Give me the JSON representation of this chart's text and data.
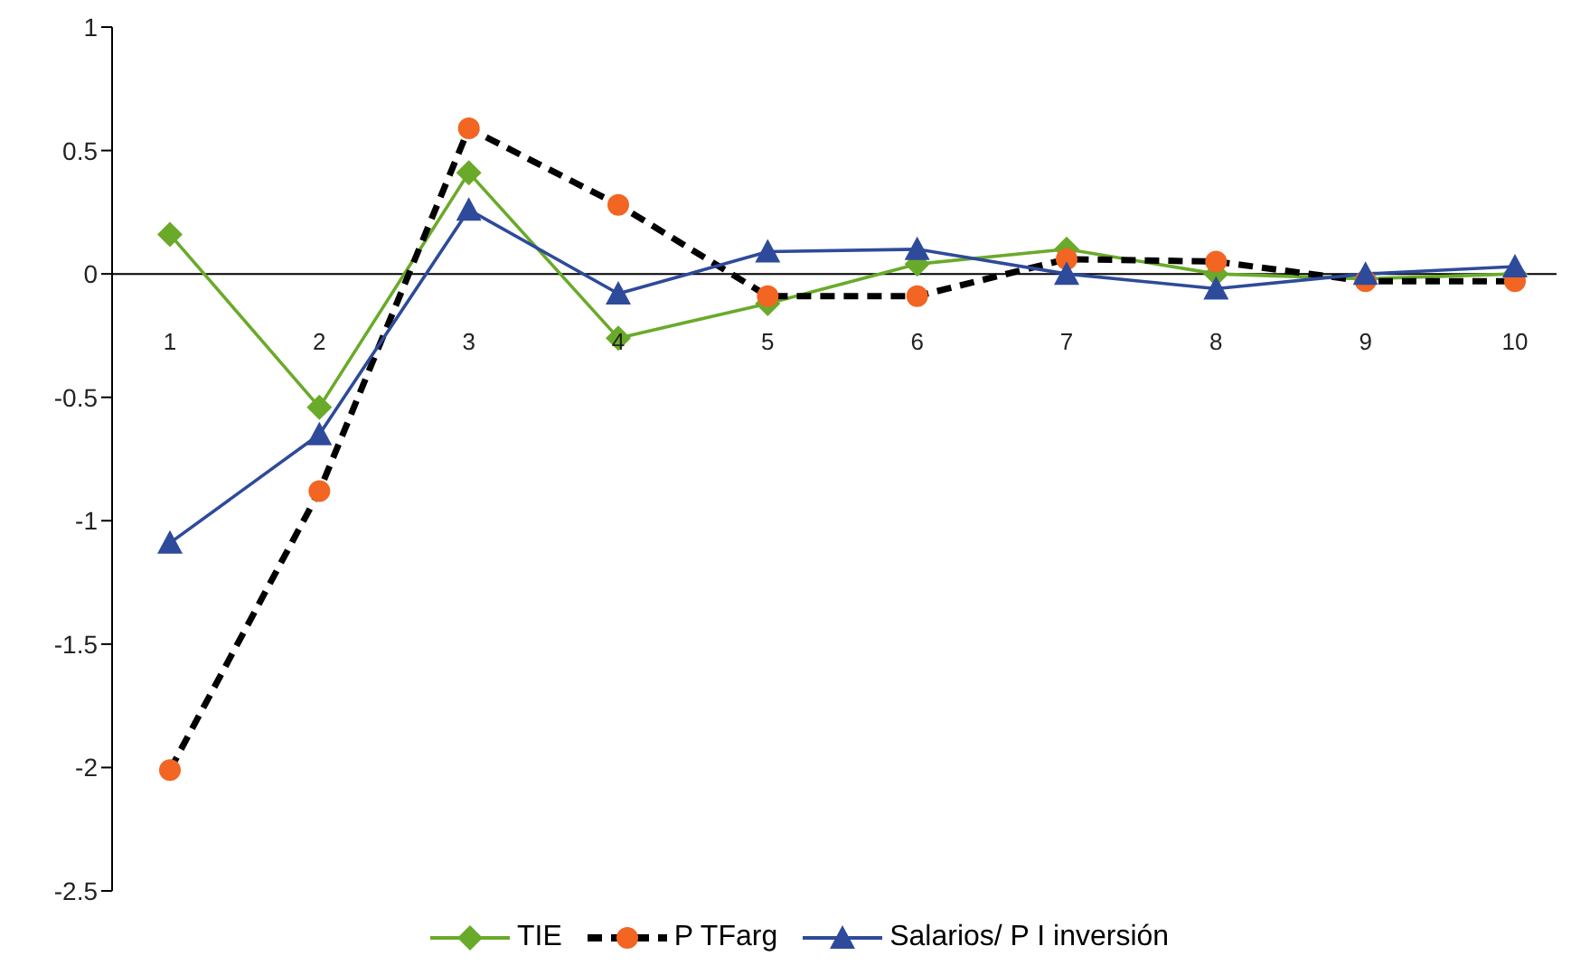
{
  "chart_data": {
    "type": "line",
    "categories": [
      "1",
      "2",
      "3",
      "4",
      "5",
      "6",
      "7",
      "8",
      "9",
      "10"
    ],
    "ylim": [
      -2.5,
      1
    ],
    "yticks": [
      -2.5,
      -2,
      -1.5,
      -1,
      -0.5,
      0,
      0.5,
      1
    ],
    "legend": "bottom",
    "series": [
      {
        "name": "TIE",
        "color": "#6aaa2a",
        "marker": "diamond",
        "line_style": "solid",
        "values": [
          0.16,
          -0.54,
          0.41,
          -0.26,
          -0.12,
          0.04,
          0.1,
          0.0,
          -0.02,
          0.0
        ]
      },
      {
        "name": "P TFarg",
        "color": "#000000",
        "colors": [
          "#f26522",
          "#f26522",
          "#f26522",
          "#f26522",
          "#f26522",
          "#f26522",
          "#f26522",
          "#f26522",
          "#f26522",
          "#f26522"
        ],
        "marker": "circle",
        "line_style": "dashed",
        "values": [
          -2.01,
          -0.88,
          0.59,
          0.28,
          -0.09,
          -0.09,
          0.06,
          0.05,
          -0.03,
          -0.03
        ]
      },
      {
        "name": "Salarios/ P I inversión",
        "color": "#2e4a9a",
        "marker": "triangle",
        "line_style": "solid",
        "values": [
          -1.09,
          -0.65,
          0.26,
          -0.08,
          0.09,
          0.1,
          0.0,
          -0.06,
          0.0,
          0.03
        ]
      }
    ]
  }
}
